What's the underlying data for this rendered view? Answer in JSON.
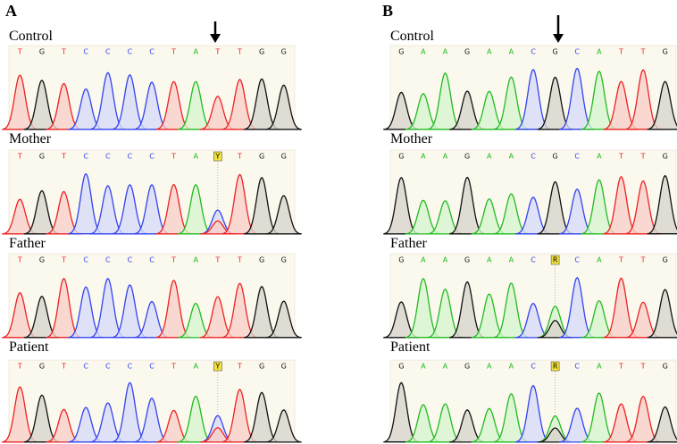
{
  "panels": [
    {
      "label": "A",
      "tracks": [
        {
          "name": "Control",
          "bases": [
            "T",
            "G",
            "T",
            "C",
            "C",
            "C",
            "C",
            "T",
            "A",
            "T",
            "T",
            "G",
            "G"
          ]
        },
        {
          "name": "Mother",
          "bases": [
            "T",
            "G",
            "T",
            "C",
            "C",
            "C",
            "C",
            "T",
            "A",
            "Y",
            "T",
            "G",
            "G"
          ]
        },
        {
          "name": "Father",
          "bases": [
            "T",
            "G",
            "T",
            "C",
            "C",
            "C",
            "C",
            "T",
            "A",
            "T",
            "T",
            "G",
            "G"
          ]
        },
        {
          "name": "Patient",
          "bases": [
            "T",
            "G",
            "T",
            "C",
            "C",
            "C",
            "C",
            "T",
            "A",
            "Y",
            "T",
            "G",
            "G"
          ]
        }
      ]
    },
    {
      "label": "B",
      "tracks": [
        {
          "name": "Control",
          "bases": [
            "G",
            "A",
            "A",
            "G",
            "A",
            "A",
            "C",
            "G",
            "C",
            "A",
            "T",
            "T",
            "G"
          ]
        },
        {
          "name": "Mother",
          "bases": [
            "G",
            "A",
            "A",
            "G",
            "A",
            "A",
            "C",
            "G",
            "C",
            "A",
            "T",
            "T",
            "G"
          ]
        },
        {
          "name": "Father",
          "bases": [
            "G",
            "A",
            "A",
            "G",
            "A",
            "A",
            "C",
            "R",
            "C",
            "A",
            "T",
            "T",
            "G"
          ]
        },
        {
          "name": "Patient",
          "bases": [
            "G",
            "A",
            "A",
            "G",
            "A",
            "A",
            "C",
            "R",
            "C",
            "A",
            "T",
            "T",
            "G"
          ]
        }
      ]
    }
  ]
}
